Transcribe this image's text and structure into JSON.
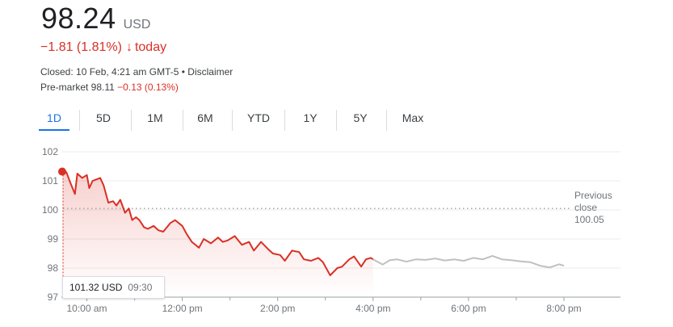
{
  "quote": {
    "price": "98.24",
    "currency": "USD",
    "change": "−1.81 (1.81%)",
    "change_arrow": "↓",
    "period": "today",
    "closed_info": "Closed: 10 Feb, 4:21 am GMT-5 • Disclaimer",
    "premarket_label": "Pre-market 98.11",
    "premarket_change": "−0.13 (0.13%)"
  },
  "tabs": [
    "1D",
    "5D",
    "1M",
    "6M",
    "YTD",
    "1Y",
    "5Y",
    "Max"
  ],
  "active_tab": "1D",
  "tooltip": {
    "value": "101.32 USD",
    "time": "09:30"
  },
  "previous_close": {
    "label_line1": "Previous",
    "label_line2": "close",
    "value": "100.05"
  },
  "colors": {
    "down": "#d93025",
    "after_hours": "#c0c0c0",
    "active_tab": "#1a73e8"
  },
  "chart_data": {
    "type": "line",
    "title": "",
    "xlabel": "",
    "ylabel": "",
    "ylim": [
      97,
      102
    ],
    "yticks": [
      97,
      98,
      99,
      100,
      101,
      102
    ],
    "xticks": [
      "10:00 am",
      "12:00 pm",
      "2:00 pm",
      "4:00 pm",
      "6:00 pm",
      "8:00 pm"
    ],
    "x_range_hours": [
      9.5,
      20.25
    ],
    "previous_close": 100.05,
    "grid": true,
    "series": [
      {
        "session": "regular",
        "x": [
          9.5,
          9.57,
          9.65,
          9.75,
          9.8,
          9.9,
          10.0,
          10.05,
          10.12,
          10.2,
          10.28,
          10.35,
          10.45,
          10.55,
          10.62,
          10.7,
          10.8,
          10.88,
          10.95,
          11.03,
          11.1,
          11.2,
          11.28,
          11.4,
          11.5,
          11.6,
          11.75,
          11.85,
          12.0,
          12.1,
          12.2,
          12.35,
          12.45,
          12.6,
          12.75,
          12.85,
          12.95,
          13.1,
          13.25,
          13.4,
          13.5,
          13.65,
          13.8,
          13.9,
          14.05,
          14.15,
          14.3,
          14.45,
          14.55,
          14.7,
          14.85,
          14.95,
          15.1,
          15.25,
          15.35,
          15.5,
          15.6,
          15.75,
          15.85,
          15.95,
          16.0
        ],
        "y": [
          101.32,
          101.3,
          100.95,
          100.55,
          101.25,
          101.1,
          101.2,
          100.75,
          101.0,
          101.05,
          101.1,
          100.85,
          100.25,
          100.3,
          100.15,
          100.35,
          99.9,
          100.05,
          99.65,
          99.75,
          99.65,
          99.4,
          99.35,
          99.45,
          99.3,
          99.25,
          99.55,
          99.65,
          99.45,
          99.15,
          98.9,
          98.7,
          99.0,
          98.85,
          99.05,
          98.9,
          98.95,
          99.1,
          98.8,
          98.9,
          98.6,
          98.9,
          98.65,
          98.5,
          98.45,
          98.25,
          98.6,
          98.55,
          98.3,
          98.25,
          98.35,
          98.2,
          97.75,
          98.0,
          98.05,
          98.3,
          98.4,
          98.05,
          98.3,
          98.35,
          98.3
        ]
      },
      {
        "session": "after-hours",
        "x": [
          16.0,
          16.2,
          16.35,
          16.5,
          16.7,
          16.9,
          17.1,
          17.3,
          17.5,
          17.7,
          17.9,
          18.1,
          18.3,
          18.5,
          18.7,
          18.9,
          19.1,
          19.3,
          19.5,
          19.7,
          19.9,
          20.0
        ],
        "y": [
          98.3,
          98.12,
          98.27,
          98.3,
          98.22,
          98.3,
          98.28,
          98.33,
          98.26,
          98.3,
          98.25,
          98.35,
          98.3,
          98.42,
          98.3,
          98.27,
          98.23,
          98.2,
          98.08,
          98.02,
          98.13,
          98.08
        ]
      }
    ]
  }
}
